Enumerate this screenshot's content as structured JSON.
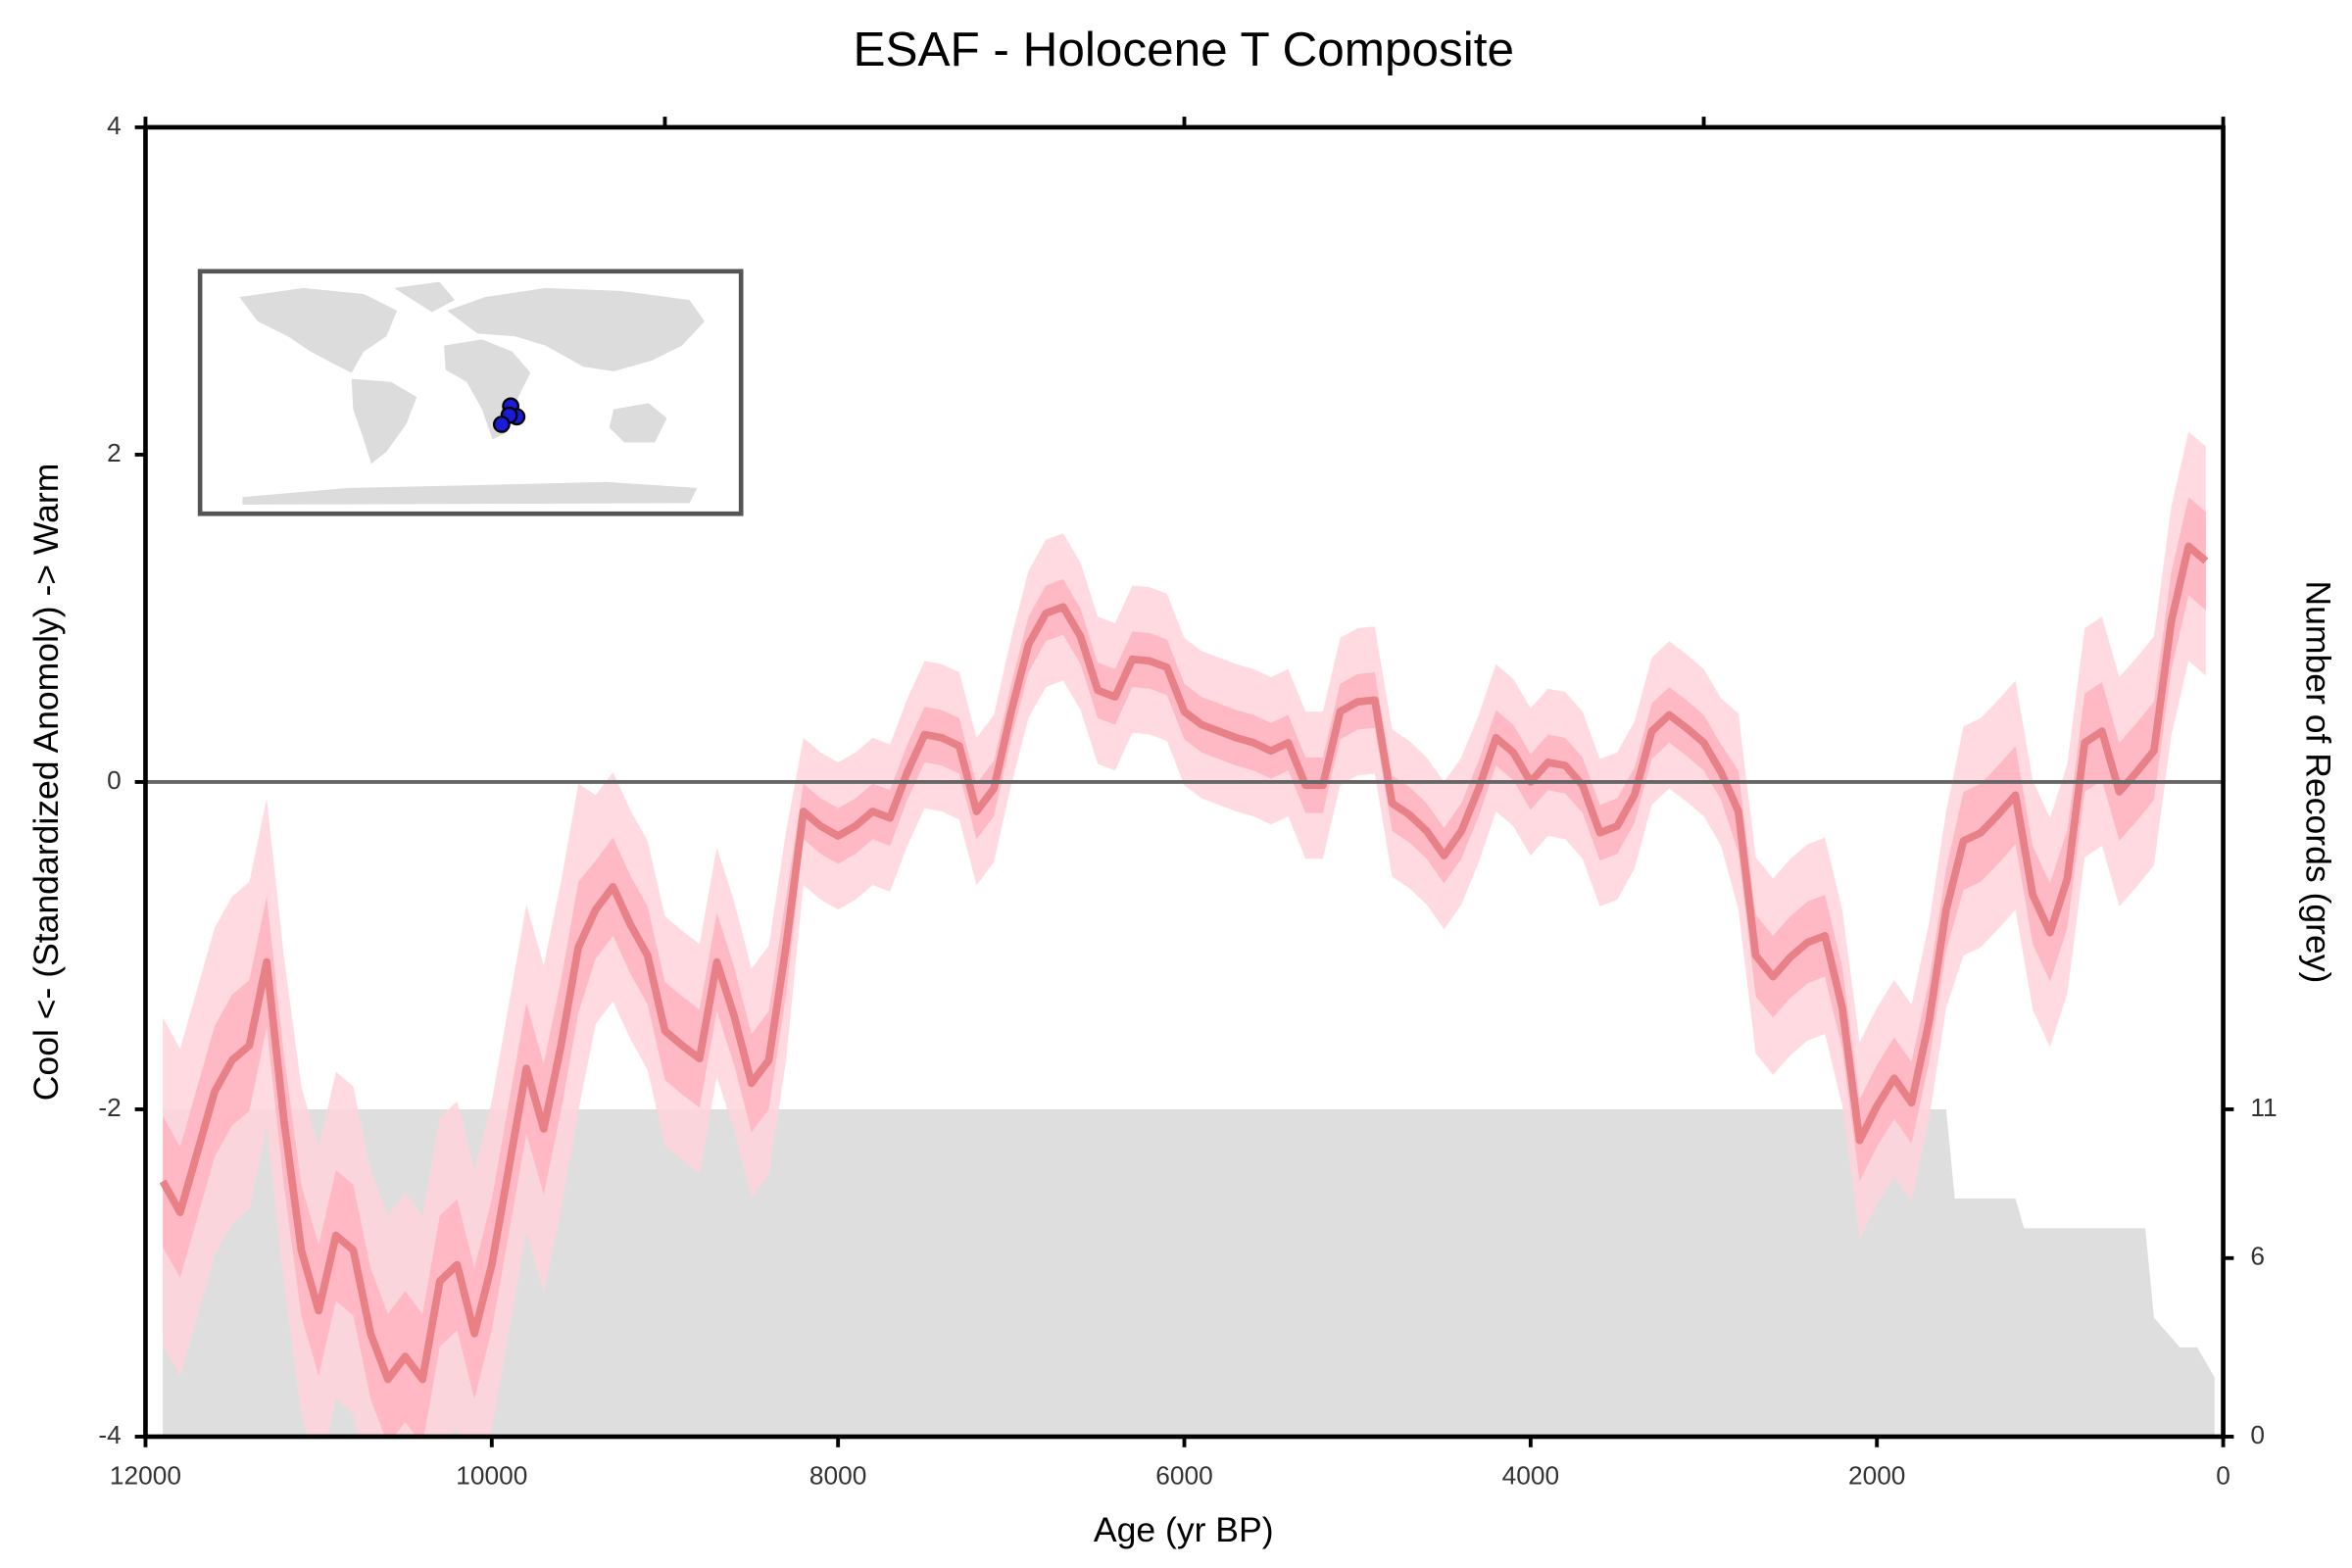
{
  "chart_data": {
    "type": "line",
    "title": "ESAF - Holocene T Composite",
    "x_label": "Age (yr BP)",
    "y_label": "Cool <- (Standardized Anomoly) -> Warm",
    "y2_label": "Number of Records (grey)",
    "xlim": [
      12000,
      0
    ],
    "xticks": [
      12000,
      10000,
      8000,
      6000,
      4000,
      2000,
      0
    ],
    "x2ticks": [
      12000,
      9000,
      6000,
      3000,
      0
    ],
    "ylim": [
      -4,
      4
    ],
    "yticks": [
      -4,
      -2,
      0,
      2,
      4
    ],
    "y2lim": [
      0,
      44
    ],
    "y2ticks": [
      0,
      6,
      11
    ],
    "hline": 0,
    "x": [
      11900,
      11800,
      11700,
      11600,
      11500,
      11400,
      11300,
      11200,
      11100,
      11000,
      10900,
      10800,
      10700,
      10600,
      10500,
      10400,
      10300,
      10200,
      10100,
      10000,
      9900,
      9800,
      9700,
      9600,
      9500,
      9400,
      9300,
      9200,
      9100,
      9000,
      8900,
      8800,
      8700,
      8600,
      8500,
      8400,
      8300,
      8200,
      8100,
      8000,
      7900,
      7800,
      7700,
      7600,
      7500,
      7400,
      7300,
      7200,
      7100,
      7000,
      6900,
      6800,
      6700,
      6600,
      6500,
      6400,
      6300,
      6200,
      6100,
      6000,
      5900,
      5800,
      5700,
      5600,
      5500,
      5400,
      5300,
      5200,
      5100,
      5000,
      4900,
      4800,
      4700,
      4600,
      4500,
      4400,
      4300,
      4200,
      4100,
      4000,
      3900,
      3800,
      3700,
      3600,
      3500,
      3400,
      3300,
      3200,
      3100,
      3000,
      2900,
      2800,
      2700,
      2600,
      2500,
      2400,
      2300,
      2200,
      2100,
      2000,
      1900,
      1800,
      1700,
      1600,
      1500,
      1400,
      1300,
      1200,
      1100,
      1000,
      900,
      800,
      700,
      600,
      500,
      400,
      300,
      200,
      100
    ],
    "series": [
      {
        "color": "#e57a80",
        "band_inner_color": "#ffb3c0",
        "band_outer_color": "#ffd5dc",
        "values": [
          -2.44,
          -2.63,
          -2.26,
          -1.89,
          -1.7,
          -1.61,
          -1.1,
          -2.07,
          -2.86,
          -3.23,
          -2.77,
          -2.86,
          -3.37,
          -3.65,
          -3.51,
          -3.65,
          -3.05,
          -2.95,
          -3.37,
          -2.95,
          -2.35,
          -1.75,
          -2.12,
          -1.61,
          -1.01,
          -0.78,
          -0.64,
          -0.87,
          -1.06,
          -1.52,
          -1.61,
          -1.69,
          -1.1,
          -1.43,
          -1.84,
          -1.7,
          -1.0,
          -0.18,
          -0.27,
          -0.33,
          -0.27,
          -0.18,
          -0.22,
          0.06,
          0.29,
          0.27,
          0.22,
          -0.18,
          -0.04,
          0.43,
          0.84,
          1.03,
          1.07,
          0.89,
          0.56,
          0.52,
          0.75,
          0.74,
          0.7,
          0.43,
          0.35,
          0.31,
          0.27,
          0.24,
          0.19,
          0.24,
          -0.02,
          -0.02,
          0.43,
          0.49,
          0.5,
          -0.13,
          -0.2,
          -0.3,
          -0.45,
          -0.3,
          -0.04,
          0.27,
          0.18,
          0.0,
          0.12,
          0.1,
          -0.02,
          -0.31,
          -0.27,
          -0.08,
          0.31,
          0.41,
          0.33,
          0.24,
          0.06,
          -0.18,
          -1.06,
          -1.19,
          -1.07,
          -0.98,
          -0.94,
          -1.38,
          -2.19,
          -1.98,
          -1.81,
          -1.96,
          -1.47,
          -0.78,
          -0.36,
          -0.31,
          -0.2,
          -0.08,
          -0.69,
          -0.92,
          -0.59,
          0.24,
          0.31,
          -0.06,
          0.06,
          0.19,
          0.98,
          1.44,
          1.35
        ],
        "error_outer": [
          1.0,
          1.0,
          1.0,
          1.0,
          1.0,
          1.0,
          1.0,
          1.0,
          1.0,
          1.0,
          1.0,
          1.0,
          1.0,
          1.0,
          1.0,
          1.0,
          1.0,
          1.0,
          1.0,
          1.0,
          1.0,
          1.0,
          1.0,
          1.0,
          1.0,
          0.7,
          0.7,
          0.7,
          0.7,
          0.7,
          0.7,
          0.7,
          0.7,
          0.7,
          0.7,
          0.7,
          0.7,
          0.45,
          0.45,
          0.45,
          0.45,
          0.45,
          0.45,
          0.45,
          0.45,
          0.45,
          0.45,
          0.45,
          0.45,
          0.45,
          0.45,
          0.45,
          0.45,
          0.45,
          0.45,
          0.45,
          0.45,
          0.45,
          0.45,
          0.45,
          0.45,
          0.45,
          0.45,
          0.45,
          0.45,
          0.45,
          0.45,
          0.45,
          0.45,
          0.45,
          0.45,
          0.45,
          0.45,
          0.45,
          0.45,
          0.45,
          0.45,
          0.45,
          0.45,
          0.45,
          0.45,
          0.45,
          0.45,
          0.45,
          0.45,
          0.45,
          0.45,
          0.45,
          0.45,
          0.45,
          0.45,
          0.6,
          0.6,
          0.6,
          0.6,
          0.6,
          0.6,
          0.6,
          0.6,
          0.6,
          0.6,
          0.6,
          0.6,
          0.6,
          0.7,
          0.7,
          0.7,
          0.7,
          0.7,
          0.7,
          0.7,
          0.7,
          0.7,
          0.7,
          0.7,
          0.7,
          0.7,
          0.7,
          0.7
        ],
        "error_inner": [
          0.4,
          0.4,
          0.4,
          0.4,
          0.4,
          0.4,
          0.4,
          0.4,
          0.4,
          0.4,
          0.4,
          0.4,
          0.4,
          0.4,
          0.4,
          0.4,
          0.4,
          0.4,
          0.4,
          0.4,
          0.4,
          0.4,
          0.4,
          0.4,
          0.4,
          0.3,
          0.3,
          0.3,
          0.3,
          0.3,
          0.3,
          0.3,
          0.3,
          0.3,
          0.3,
          0.3,
          0.3,
          0.17,
          0.17,
          0.17,
          0.17,
          0.17,
          0.17,
          0.17,
          0.17,
          0.17,
          0.17,
          0.17,
          0.17,
          0.17,
          0.17,
          0.17,
          0.17,
          0.17,
          0.17,
          0.17,
          0.17,
          0.17,
          0.17,
          0.17,
          0.17,
          0.17,
          0.17,
          0.17,
          0.17,
          0.17,
          0.17,
          0.17,
          0.17,
          0.17,
          0.17,
          0.17,
          0.17,
          0.17,
          0.17,
          0.17,
          0.17,
          0.17,
          0.17,
          0.17,
          0.17,
          0.17,
          0.17,
          0.17,
          0.17,
          0.17,
          0.17,
          0.17,
          0.17,
          0.17,
          0.17,
          0.25,
          0.25,
          0.25,
          0.25,
          0.25,
          0.25,
          0.25,
          0.25,
          0.25,
          0.25,
          0.25,
          0.25,
          0.25,
          0.3,
          0.3,
          0.3,
          0.3,
          0.3,
          0.3,
          0.3,
          0.3,
          0.3,
          0.3,
          0.3,
          0.3,
          0.3,
          0.3,
          0.3
        ]
      }
    ],
    "records": {
      "axis": "y2",
      "color": "#dedede",
      "x": [
        11900,
        1600,
        1550,
        1200,
        1150,
        450,
        400,
        250,
        150,
        50
      ],
      "values": [
        11,
        11,
        8,
        8,
        7,
        7,
        4,
        3,
        3,
        2
      ]
    }
  }
}
